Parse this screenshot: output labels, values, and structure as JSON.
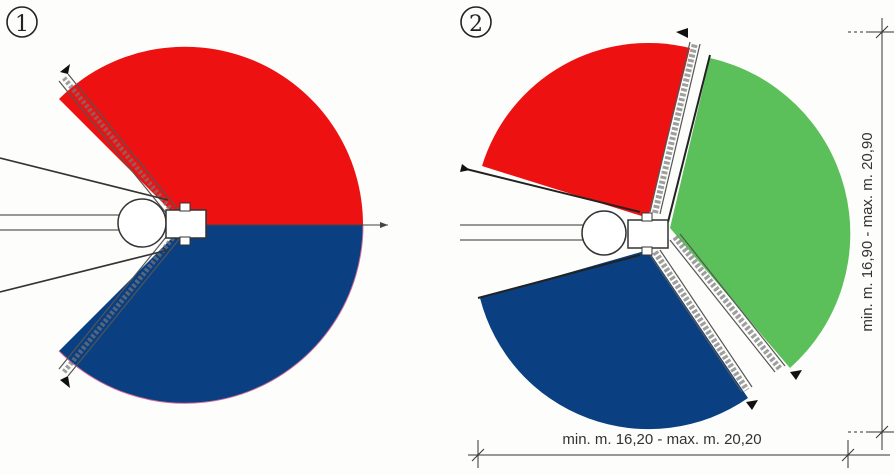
{
  "diagrams": [
    {
      "label": "①",
      "sectors": [
        {
          "name": "upper",
          "color": "#ee1111"
        },
        {
          "name": "lower",
          "color": "#0a3f82"
        }
      ]
    },
    {
      "label": "②",
      "sectors": [
        {
          "name": "upper-left",
          "color": "#ee1111"
        },
        {
          "name": "right",
          "color": "#5cc05a"
        },
        {
          "name": "lower-left",
          "color": "#0a3f82"
        }
      ]
    }
  ],
  "dimensions": {
    "width": "min. m. 16,20 - max. m. 20,20",
    "height": "min. m. 16,90 - max. m. 20,90"
  },
  "colors": {
    "red": "#ee1111",
    "blue": "#0a3f82",
    "green": "#5cc05a",
    "line": "#333333",
    "boom": "#666666"
  }
}
